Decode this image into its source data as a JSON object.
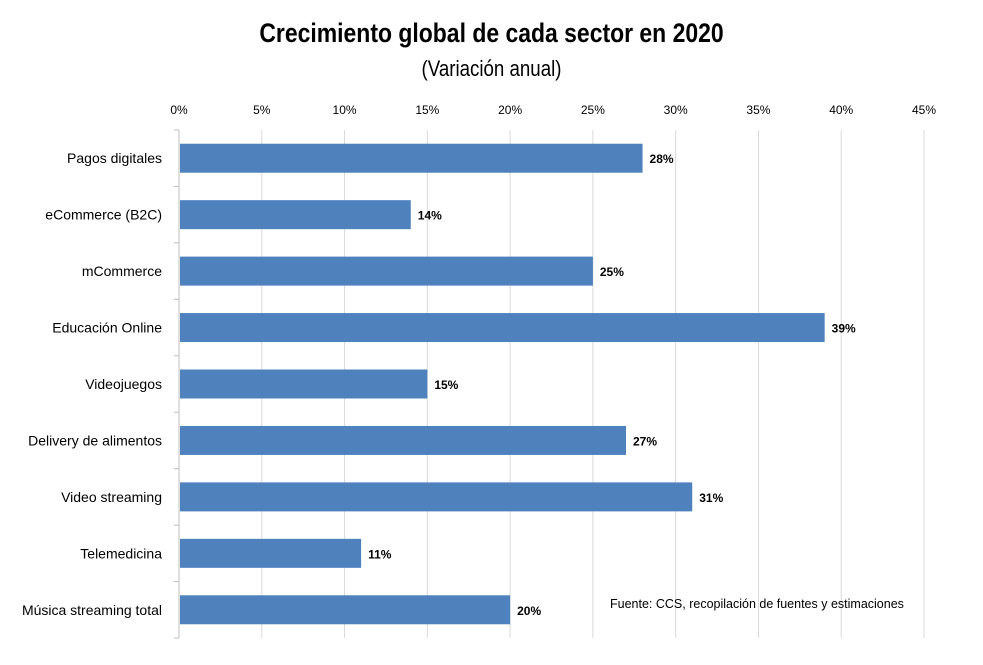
{
  "chart_data": {
    "type": "bar",
    "orientation": "horizontal",
    "title": "Crecimiento global de cada sector en 2020",
    "subtitle": "(Variación anual)",
    "categories": [
      "Pagos digitales",
      "eCommerce (B2C)",
      "mCommerce",
      "Educación Online",
      "Videojuegos",
      "Delivery de alimentos",
      "Video streaming",
      "Telemedicina",
      "Música streaming total"
    ],
    "values": [
      28,
      14,
      25,
      39,
      15,
      27,
      31,
      11,
      20
    ],
    "value_labels": [
      "28%",
      "14%",
      "25%",
      "39%",
      "15%",
      "27%",
      "31%",
      "11%",
      "20%"
    ],
    "xlim": [
      0,
      45
    ],
    "xticks": [
      0,
      5,
      10,
      15,
      20,
      25,
      30,
      35,
      40,
      45
    ],
    "xtick_labels": [
      "0%",
      "5%",
      "10%",
      "15%",
      "20%",
      "25%",
      "30%",
      "35%",
      "40%",
      "45%"
    ],
    "x_axis_position": "top",
    "grid": true,
    "bar_color": "#4F81BD",
    "grid_color": "#D9D9D9",
    "annotation": "Fuente: CCS, recopilación de fuentes y estimaciones"
  }
}
